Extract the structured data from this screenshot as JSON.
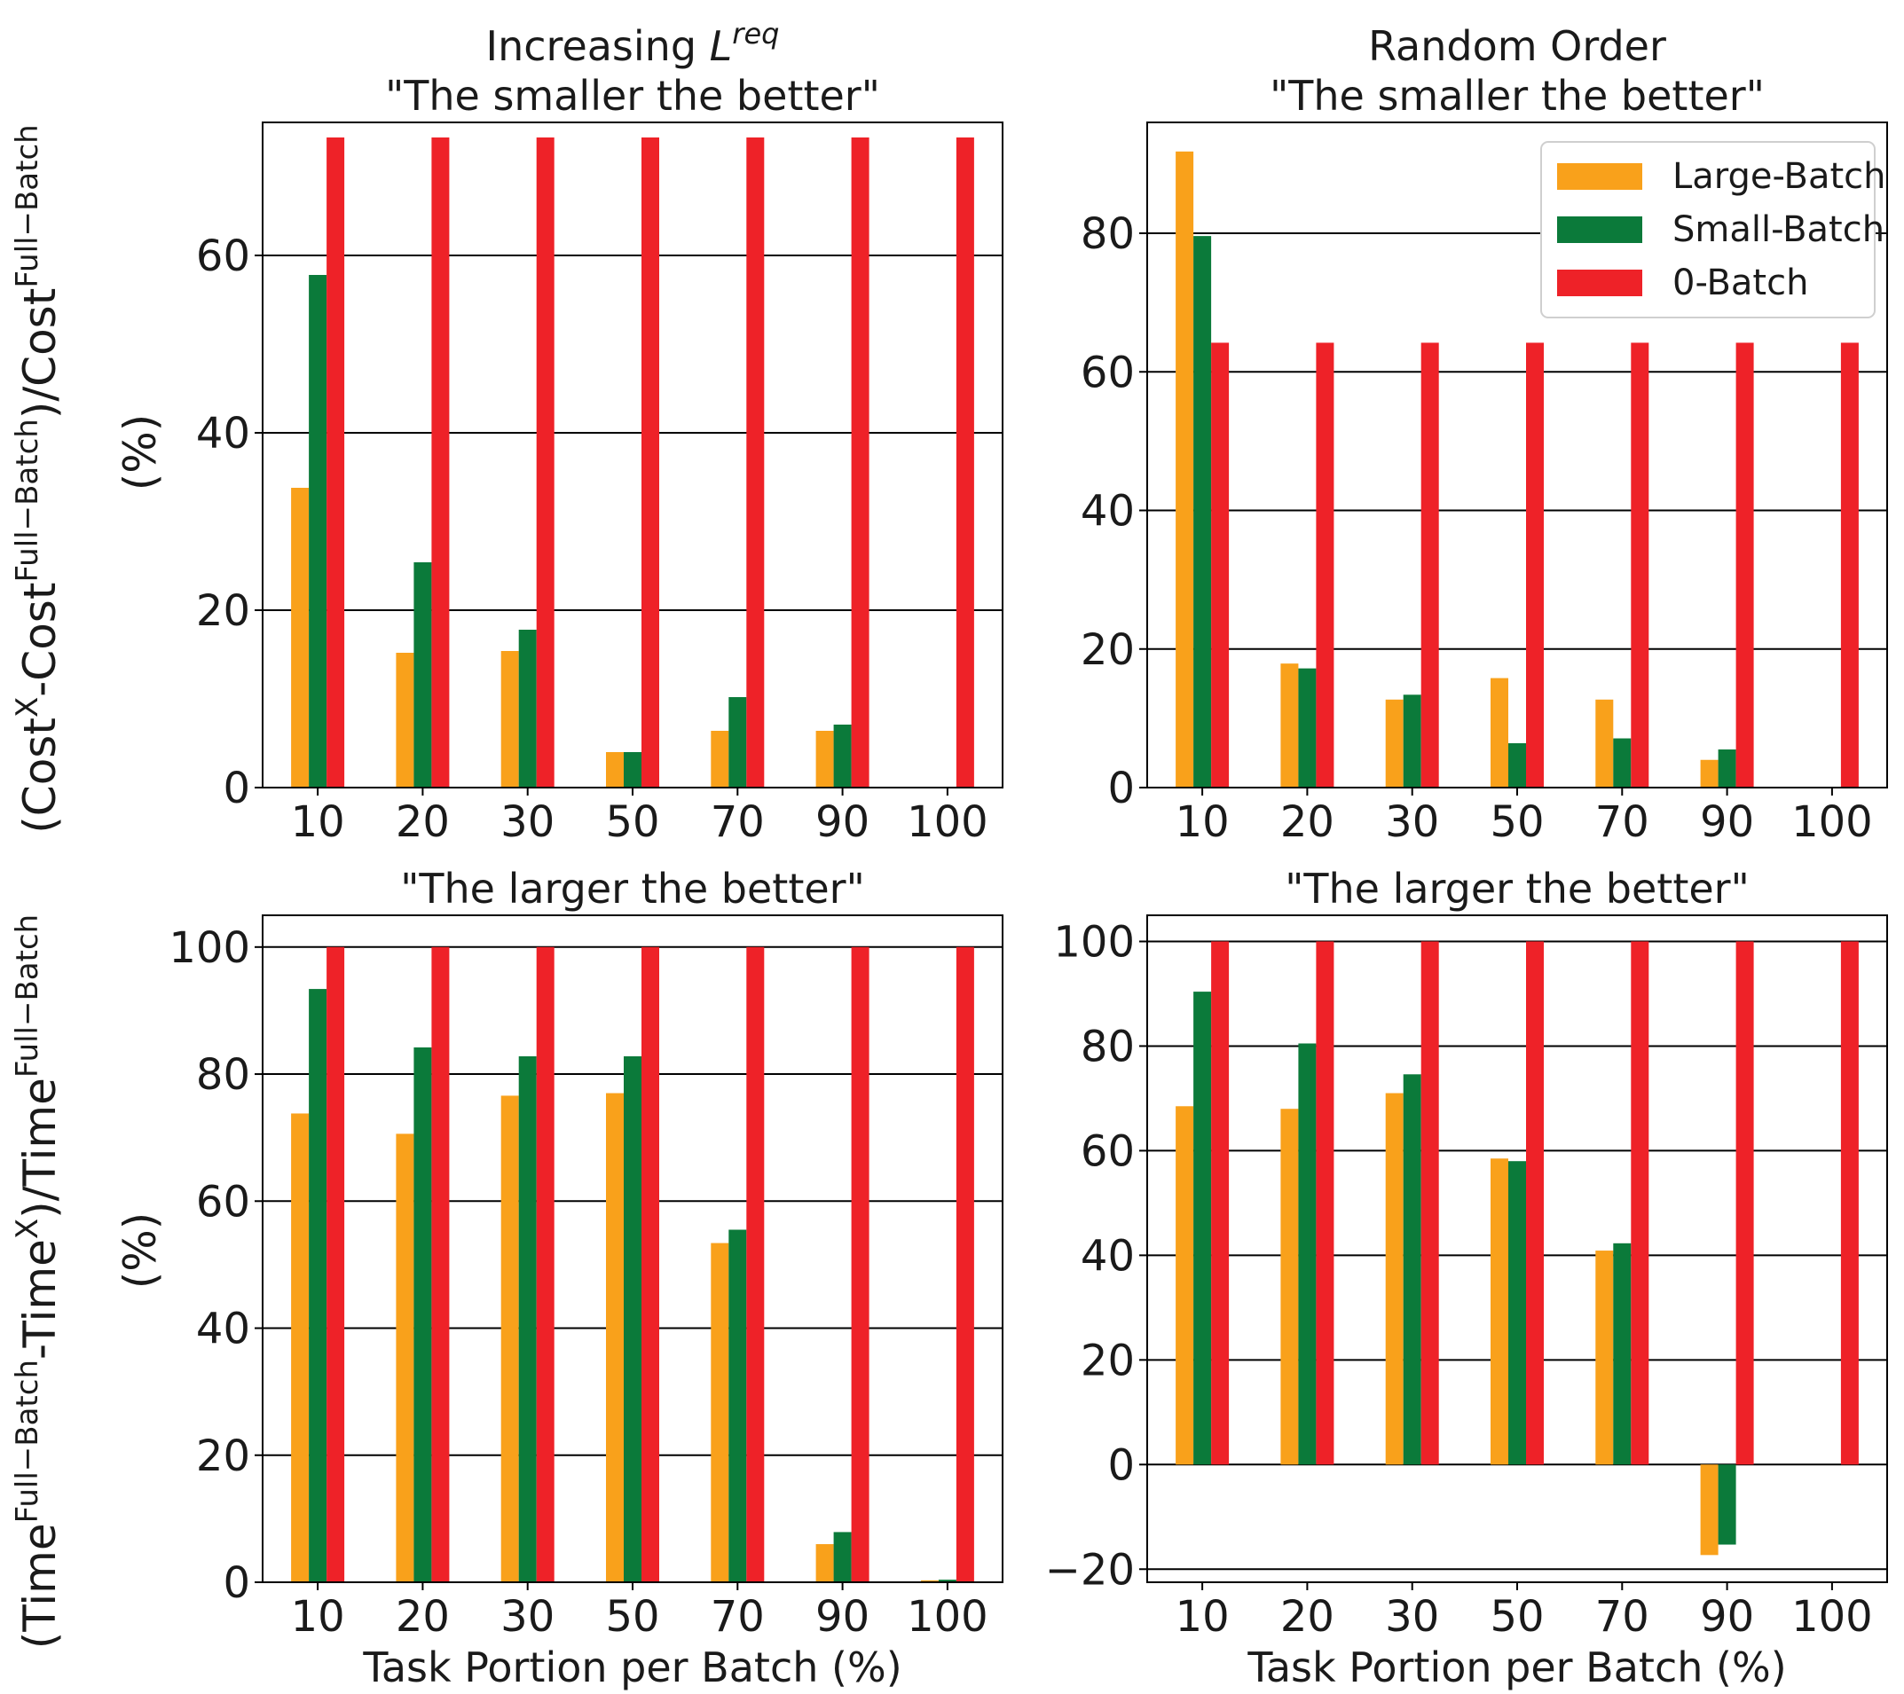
{
  "colors": {
    "large": "#f9a11b",
    "small": "#0b7a3a",
    "zero": "#ee2228",
    "grid": "#000000"
  },
  "y_labels": {
    "cost": {
      "pre": "(Cost",
      "sup1": "X",
      "mid": "-Cost",
      "sup2": "Full−Batch",
      "post": ")/Cost",
      "sup3": "Full−Batch",
      "unit": "(%)"
    },
    "time": {
      "pre": "(Time",
      "sup1": "Full−Batch",
      "mid": "-Time",
      "sup2": "X",
      "post": ")/Time",
      "sup3": "Full−Batch",
      "unit": "(%)"
    }
  },
  "legend": [
    "Large-Batch",
    "Small-Batch",
    "0-Batch"
  ],
  "chart_data": [
    {
      "type": "bar",
      "title_line1": "Increasing ",
      "title_sym": "L",
      "title_sup": "req",
      "title_line2": "\"The smaller the better\"",
      "xlabel": "",
      "categories": [
        "10",
        "20",
        "30",
        "50",
        "70",
        "90",
        "100"
      ],
      "ylim": [
        0,
        75
      ],
      "yticks": [
        0,
        20,
        40,
        60
      ],
      "series": [
        {
          "name": "Large-Batch",
          "values": [
            33.8,
            15.2,
            15.4,
            4.0,
            6.4,
            6.4,
            0
          ]
        },
        {
          "name": "Small-Batch",
          "values": [
            57.8,
            25.4,
            17.8,
            4.0,
            10.2,
            7.1,
            0
          ]
        },
        {
          "name": "0-Batch",
          "values": [
            73.3,
            73.3,
            73.3,
            73.3,
            73.3,
            73.3,
            73.3
          ]
        }
      ]
    },
    {
      "type": "bar",
      "title_line1": "Random Order",
      "title_line2": "\"The smaller the better\"",
      "xlabel": "",
      "categories": [
        "10",
        "20",
        "30",
        "50",
        "70",
        "90",
        "100"
      ],
      "ylim": [
        0,
        96
      ],
      "yticks": [
        0,
        20,
        40,
        60,
        80
      ],
      "legend": true,
      "series": [
        {
          "name": "Large-Batch",
          "values": [
            91.8,
            17.9,
            12.7,
            15.8,
            12.7,
            4.0,
            0
          ]
        },
        {
          "name": "Small-Batch",
          "values": [
            79.6,
            17.2,
            13.4,
            6.4,
            7.1,
            5.5,
            0
          ]
        },
        {
          "name": "0-Batch",
          "values": [
            64.2,
            64.2,
            64.2,
            64.2,
            64.2,
            64.2,
            64.2
          ]
        }
      ]
    },
    {
      "type": "bar",
      "title_line1": "\"The larger the better\"",
      "xlabel": "Task Portion per Batch (%)",
      "categories": [
        "10",
        "20",
        "30",
        "50",
        "70",
        "90",
        "100"
      ],
      "ylim": [
        0,
        105
      ],
      "yticks": [
        0,
        20,
        40,
        60,
        80,
        100
      ],
      "series": [
        {
          "name": "Large-Batch",
          "values": [
            73.8,
            70.6,
            76.6,
            77.0,
            53.4,
            6.0,
            0.3
          ]
        },
        {
          "name": "Small-Batch",
          "values": [
            93.4,
            84.2,
            82.8,
            82.8,
            55.5,
            7.9,
            0.4
          ]
        },
        {
          "name": "0-Batch",
          "values": [
            100,
            100,
            100,
            100,
            100,
            100,
            100
          ]
        }
      ]
    },
    {
      "type": "bar",
      "title_line1": "\"The larger the better\"",
      "xlabel": "Task Portion per Batch (%)",
      "categories": [
        "10",
        "20",
        "30",
        "50",
        "70",
        "90",
        "100"
      ],
      "ylim": [
        -22.5,
        105
      ],
      "yticks": [
        -20,
        0,
        20,
        40,
        60,
        80,
        100
      ],
      "series": [
        {
          "name": "Large-Batch",
          "values": [
            68.5,
            68.0,
            71.0,
            58.5,
            40.9,
            -17.3,
            0
          ]
        },
        {
          "name": "Small-Batch",
          "values": [
            90.4,
            80.5,
            74.6,
            58.0,
            42.3,
            -15.3,
            0
          ]
        },
        {
          "name": "0-Batch",
          "values": [
            100,
            100,
            100,
            100,
            100,
            100,
            100
          ]
        }
      ]
    }
  ]
}
